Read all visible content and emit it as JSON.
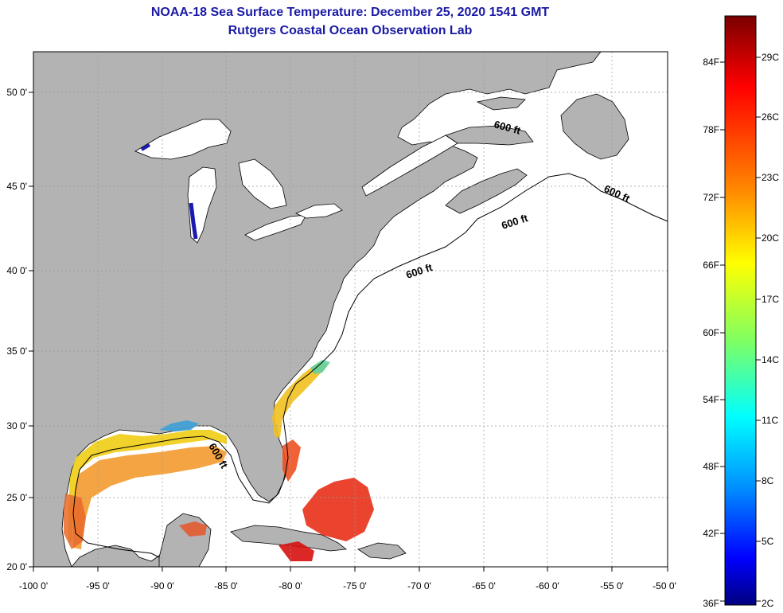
{
  "title": {
    "line1": "NOAA-18 Sea Surface Temperature:  December 25, 2020 1541 GMT",
    "line2": "Rutgers Coastal Ocean Observation Lab"
  },
  "map": {
    "lon_range": [
      -100,
      -50
    ],
    "lat_range": [
      20,
      52
    ],
    "lon_ticks": [
      "-100 0'",
      "-95 0'",
      "-90 0'",
      "-85 0'",
      "-80 0'",
      "-75 0'",
      "-70 0'",
      "-65 0'",
      "-60 0'",
      "-55 0'",
      "-50 0'"
    ],
    "lat_ticks": [
      "50 0'",
      "45 0'",
      "40 0'",
      "35 0'",
      "30 0'",
      "25 0'",
      "20 0'"
    ],
    "isobath_labels": [
      "600 ft",
      "600 ft",
      "600 ft",
      "600 ft",
      "600 ft"
    ],
    "colors": {
      "land": "#b3b3b3",
      "ocean_nodata": "#ffffff",
      "grid": "#999999"
    }
  },
  "colorbar": {
    "f_labels": [
      "84F",
      "78F",
      "72F",
      "66F",
      "60F",
      "54F",
      "48F",
      "42F",
      "36F"
    ],
    "c_labels": [
      "29C",
      "26C",
      "23C",
      "20C",
      "17C",
      "14C",
      "11C",
      "8C",
      "5C",
      "2C"
    ],
    "colors": [
      "#800000",
      "#ff0000",
      "#ff8000",
      "#ffff00",
      "#80ff80",
      "#00ffff",
      "#0080ff",
      "#0000ff",
      "#000080"
    ]
  }
}
